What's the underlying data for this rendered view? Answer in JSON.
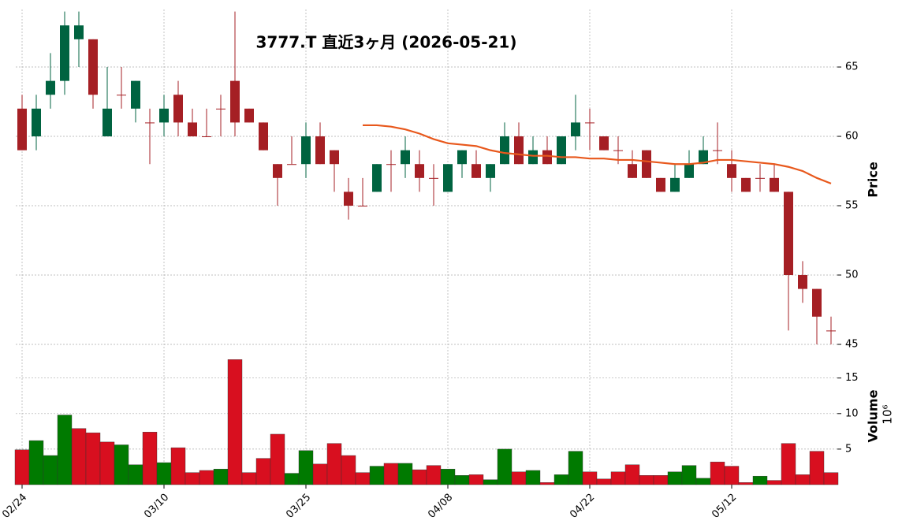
{
  "chart_data": {
    "type": "candlestick",
    "title": "3777.T 直近3ヶ月 (2026-05-21)",
    "ylabel": "Price",
    "volume_label": "Volume",
    "volume_exponent_label": "10⁶",
    "categories": [
      "02/24",
      null,
      null,
      null,
      null,
      null,
      null,
      null,
      null,
      null,
      "03/10",
      null,
      null,
      null,
      null,
      null,
      null,
      null,
      null,
      null,
      "03/25",
      null,
      null,
      null,
      null,
      null,
      null,
      null,
      null,
      null,
      "04/08",
      null,
      null,
      null,
      null,
      null,
      null,
      null,
      null,
      null,
      "04/22",
      null,
      null,
      null,
      null,
      null,
      null,
      null,
      null,
      null,
      "05/12",
      null,
      null,
      null,
      null,
      null,
      null,
      null
    ],
    "open": [
      62,
      60,
      63,
      64,
      67,
      67,
      60,
      63,
      62,
      61,
      61,
      63,
      61,
      60,
      62,
      64,
      62,
      61,
      58,
      58,
      58,
      60,
      59,
      56,
      55,
      56,
      58,
      58,
      58,
      57,
      56,
      58,
      58,
      57,
      58,
      60,
      58,
      59,
      58,
      60,
      61,
      60,
      59,
      58,
      59,
      57,
      56,
      57,
      58,
      59,
      58,
      57,
      57,
      57,
      56,
      50,
      49,
      46
    ],
    "high": [
      63,
      63,
      66,
      69,
      69,
      67,
      65,
      65,
      64,
      62,
      63,
      64,
      62,
      62,
      63,
      69,
      62,
      61,
      58,
      60,
      61,
      61,
      59,
      57,
      57,
      58,
      59,
      60,
      59,
      58,
      58,
      59,
      59,
      58,
      61,
      61,
      60,
      60,
      60,
      63,
      62,
      60,
      60,
      59,
      59,
      57,
      58,
      59,
      60,
      61,
      59,
      57,
      58,
      58,
      56,
      51,
      49,
      47
    ],
    "low": [
      59,
      59,
      62,
      63,
      65,
      62,
      60,
      62,
      61,
      58,
      60,
      60,
      60,
      60,
      60,
      60,
      61,
      59,
      55,
      58,
      57,
      58,
      56,
      54,
      55,
      56,
      56,
      57,
      56,
      55,
      56,
      57,
      57,
      56,
      58,
      58,
      58,
      58,
      58,
      59,
      59,
      59,
      58,
      57,
      57,
      56,
      56,
      57,
      58,
      58,
      56,
      56,
      56,
      56,
      46,
      48,
      45,
      45
    ],
    "close": [
      59,
      62,
      64,
      68,
      68,
      63,
      62,
      63,
      64,
      61,
      62,
      61,
      60,
      60,
      62,
      61,
      61,
      59,
      57,
      58,
      60,
      58,
      58,
      55,
      55,
      58,
      58,
      59,
      57,
      57,
      58,
      59,
      57,
      58,
      60,
      58,
      59,
      58,
      60,
      61,
      61,
      59,
      59,
      57,
      57,
      56,
      57,
      58,
      59,
      59,
      57,
      56,
      57,
      56,
      50,
      49,
      47,
      46
    ],
    "volume": [
      4.9,
      6.2,
      4.1,
      9.8,
      7.9,
      7.3,
      6.0,
      5.6,
      2.8,
      7.4,
      3.1,
      5.2,
      1.7,
      2.0,
      2.2,
      17.6,
      1.7,
      3.7,
      7.1,
      1.6,
      4.8,
      2.9,
      5.8,
      4.1,
      1.7,
      2.6,
      3.0,
      3.0,
      2.1,
      2.7,
      2.2,
      1.3,
      1.4,
      0.7,
      5.0,
      1.8,
      2.0,
      0.3,
      1.4,
      4.7,
      1.8,
      0.8,
      1.8,
      2.8,
      1.3,
      1.3,
      1.8,
      2.7,
      0.9,
      3.2,
      2.6,
      0.3,
      1.2,
      0.6,
      5.8,
      1.4,
      4.7,
      1.7
    ],
    "moving_average": {
      "color": "#e8581c",
      "values": [
        null,
        null,
        null,
        null,
        null,
        null,
        null,
        null,
        null,
        null,
        null,
        null,
        null,
        null,
        null,
        null,
        null,
        null,
        null,
        null,
        null,
        null,
        null,
        null,
        60.8,
        60.8,
        60.7,
        60.5,
        60.2,
        59.8,
        59.5,
        59.4,
        59.3,
        59.0,
        58.8,
        58.7,
        58.6,
        58.6,
        58.5,
        58.5,
        58.4,
        58.4,
        58.3,
        58.3,
        58.2,
        58.1,
        58.0,
        58.0,
        58.1,
        58.3,
        58.3,
        58.2,
        58.1,
        58.0,
        57.8,
        57.5,
        57.0,
        56.6
      ]
    },
    "up_color": "#006340",
    "down_color": "#a51f24",
    "volume_up_color": "#007a00",
    "volume_down_color": "#d80f1f",
    "ylim": [
      45,
      69.15
    ],
    "yticks": [
      45,
      50,
      55,
      60,
      65
    ],
    "volume_ylim": [
      0,
      19.4
    ],
    "volume_yticks": [
      5,
      10,
      15
    ],
    "grid": true
  }
}
